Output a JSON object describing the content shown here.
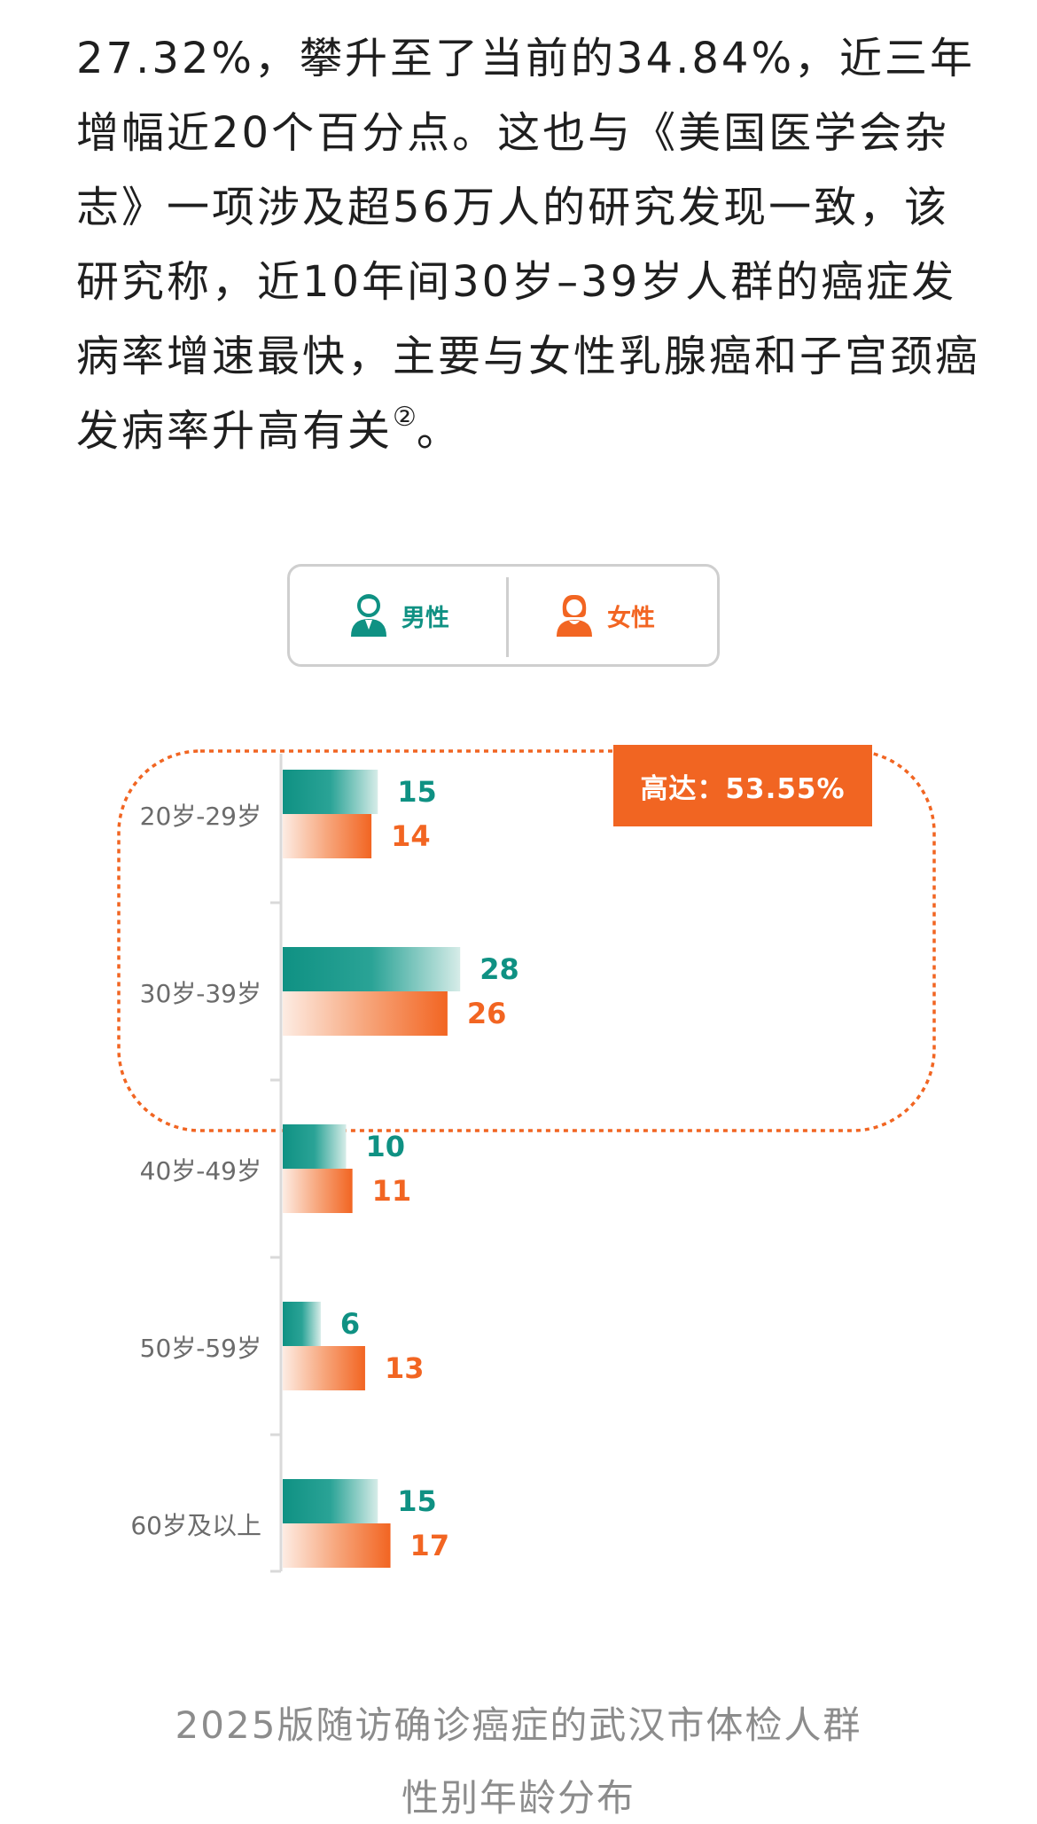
{
  "article": {
    "text": "27.32%，攀升至了当前的34.84%，近三年增幅近20个百分点。这也与《美国医学会杂志》一项涉及超56万人的研究发现一致，该研究称，近10年间30岁–39岁人群的癌症发病率增速最快，主要与女性乳腺癌和子宫颈癌发病率升高有关",
    "footnote": "②",
    "end": "。"
  },
  "legend": {
    "male_icon": "male-person-icon",
    "male_label": "男性",
    "female_icon": "female-person-icon",
    "female_label": "女性"
  },
  "colors": {
    "male": "#0f9183",
    "female": "#f26522",
    "highlight": "#f16522",
    "axis": "#d9d9d9",
    "caption": "#8c8c8c"
  },
  "highlight": {
    "text": "高达：53.55%"
  },
  "chart_data": {
    "type": "bar",
    "orientation": "horizontal",
    "categories": [
      "20岁-29岁",
      "30岁-39岁",
      "40岁-49岁",
      "50岁-59岁",
      "60岁及以上"
    ],
    "series": [
      {
        "name": "男性",
        "values": [
          15,
          28,
          10,
          6,
          15
        ]
      },
      {
        "name": "女性",
        "values": [
          14,
          26,
          11,
          13,
          17
        ]
      }
    ],
    "highlighted_categories": [
      "20岁-29岁",
      "30岁-39岁"
    ],
    "legend_position": "top"
  },
  "caption": {
    "line1": "2025版随访确诊癌症的武汉市体检人群",
    "line2": "性别年龄分布"
  }
}
